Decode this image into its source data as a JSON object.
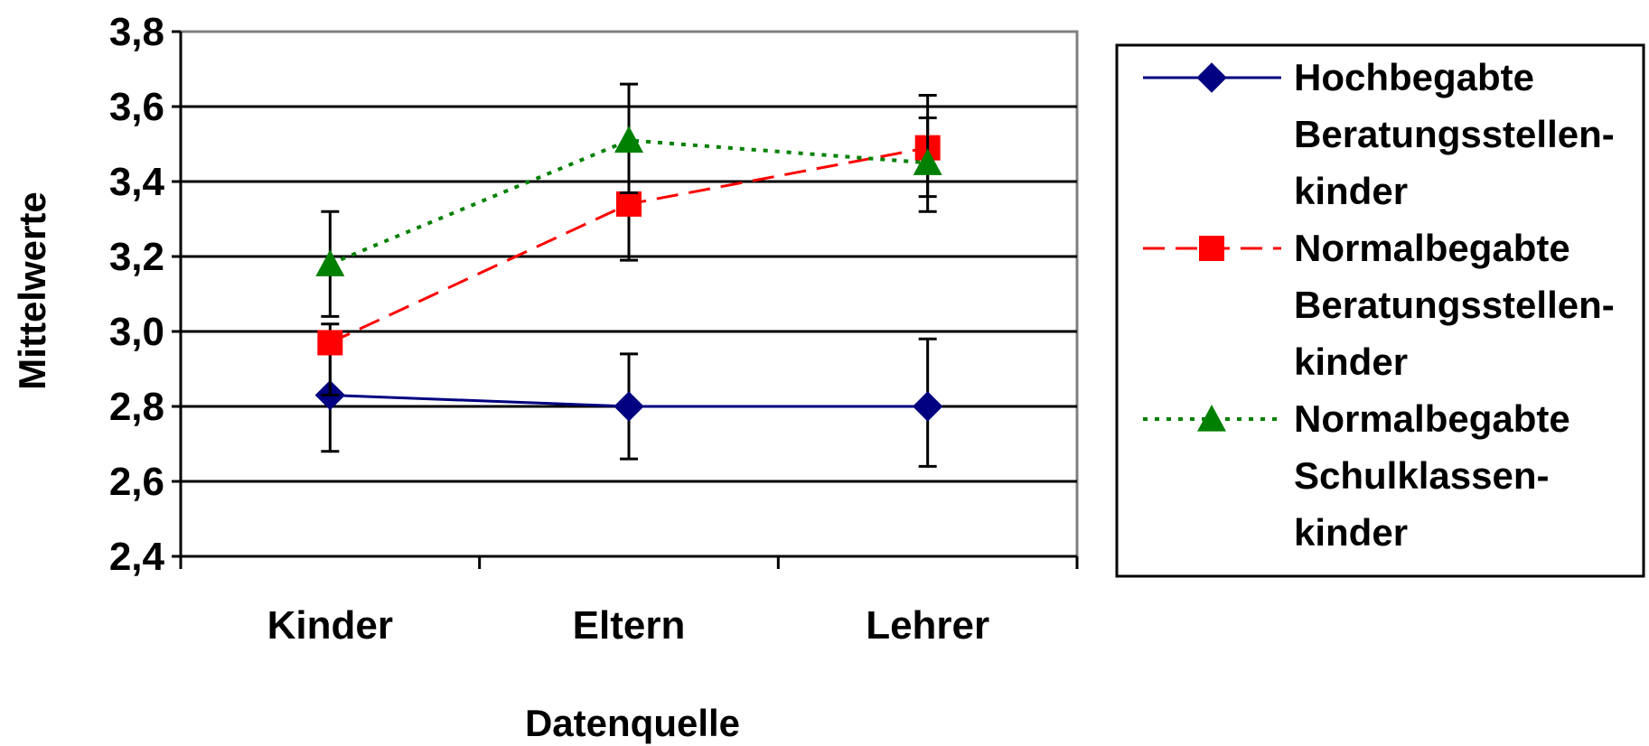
{
  "chart_data": {
    "type": "line",
    "title": "",
    "xlabel": "Datenquelle",
    "ylabel": "Mittelwerte",
    "categories": [
      "Kinder",
      "Eltern",
      "Lehrer"
    ],
    "y_ticks": [
      "2,4",
      "2,6",
      "2,8",
      "3,0",
      "3,2",
      "3,4",
      "3,6",
      "3,8"
    ],
    "ylim": [
      2.4,
      3.8
    ],
    "grid": "horizontal",
    "legend_position": "right",
    "series": [
      {
        "name_lines": [
          "Hochbegabte",
          "Beratungsstellen-",
          "kinder"
        ],
        "values": [
          2.83,
          2.8,
          2.8
        ],
        "err_low": [
          2.68,
          2.66,
          2.64
        ],
        "err_high": [
          2.98,
          2.94,
          2.98
        ],
        "color": "#000080",
        "marker": "diamond",
        "line_style": "solid"
      },
      {
        "name_lines": [
          "Normalbegabte",
          "Beratungsstellen-",
          "kinder"
        ],
        "values": [
          2.97,
          3.34,
          3.49
        ],
        "err_low": [
          2.83,
          3.19,
          3.36
        ],
        "err_high": [
          3.02,
          3.49,
          3.63
        ],
        "color": "#ff0000",
        "marker": "square",
        "line_style": "dashed"
      },
      {
        "name_lines": [
          "Normalbegabte",
          "Schulklassen-",
          "kinder"
        ],
        "values": [
          3.18,
          3.51,
          3.45
        ],
        "err_low": [
          3.04,
          3.37,
          3.32
        ],
        "err_high": [
          3.32,
          3.66,
          3.57
        ],
        "color": "#008000",
        "marker": "triangle",
        "line_style": "dotted"
      }
    ]
  }
}
